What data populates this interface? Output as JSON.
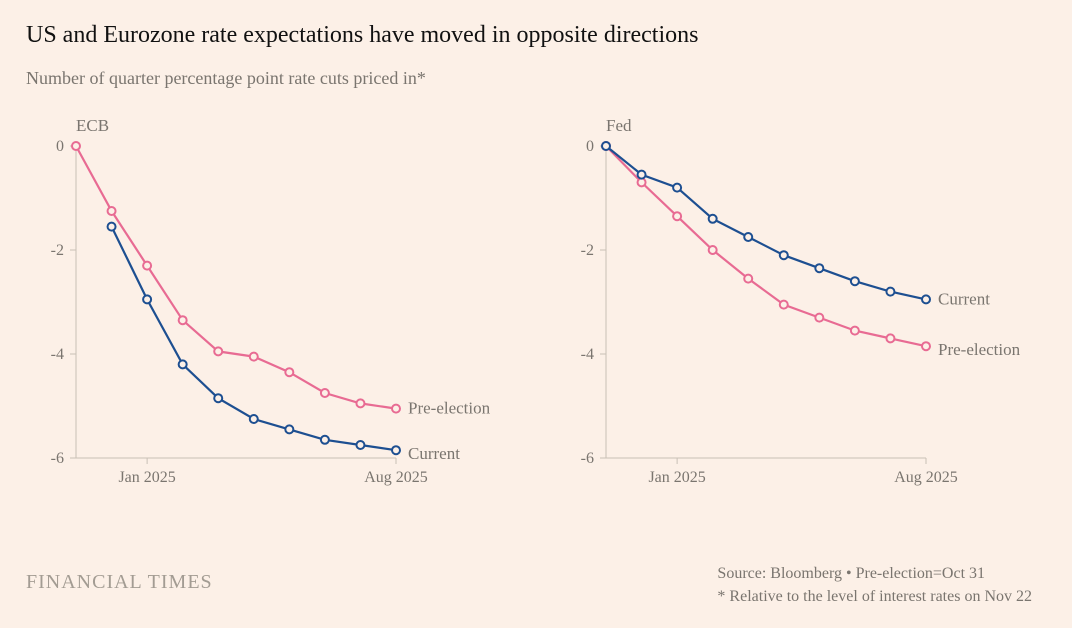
{
  "title": "US and Eurozone rate expectations have moved in opposite directions",
  "subtitle": "Number of quarter percentage point rate cuts priced in*",
  "brand": "FINANCIAL TIMES",
  "source_line": "Source: Bloomberg • Pre-election=Oct 31",
  "footnote_line": "* Relative to the level of interest rates on Nov 22",
  "layout": {
    "bg_color": "#fcf0e7",
    "axis_color": "#c9c0b6",
    "text_muted": "#7a756f",
    "ylim": [
      -6,
      0
    ],
    "ytick_step": 2,
    "x_count": 10,
    "x_ticks": [
      {
        "idx": 2,
        "label": "Jan 2025"
      },
      {
        "idx": 9,
        "label": "Aug 2025"
      }
    ]
  },
  "panels": [
    {
      "key": "ecb",
      "title": "ECB",
      "series": [
        {
          "name": "Pre-election",
          "color": "#e86b93",
          "values": [
            0.0,
            -1.25,
            -2.3,
            -3.35,
            -3.95,
            -4.05,
            -4.35,
            -4.75,
            -4.95,
            -5.05
          ]
        },
        {
          "name": "Current",
          "color": "#1d4f91",
          "values": [
            null,
            -1.55,
            -2.95,
            -4.2,
            -4.85,
            -5.25,
            -5.45,
            -5.65,
            -5.75,
            -5.85
          ]
        }
      ],
      "annotations": [
        {
          "series": 0,
          "text": "Pre-election",
          "at_idx": 9,
          "dy": 0
        },
        {
          "series": 1,
          "text": "Current",
          "at_idx": 9,
          "dy": 4
        }
      ]
    },
    {
      "key": "fed",
      "title": "Fed",
      "series": [
        {
          "name": "Pre-election",
          "color": "#e86b93",
          "values": [
            0.0,
            -0.7,
            -1.35,
            -2.0,
            -2.55,
            -3.05,
            -3.3,
            -3.55,
            -3.7,
            -3.85
          ]
        },
        {
          "name": "Current",
          "color": "#1d4f91",
          "values": [
            0.0,
            -0.55,
            -0.8,
            -1.4,
            -1.75,
            -2.1,
            -2.35,
            -2.6,
            -2.8,
            -2.95
          ]
        }
      ],
      "annotations": [
        {
          "series": 1,
          "text": "Current",
          "at_idx": 9,
          "dy": 0
        },
        {
          "series": 0,
          "text": "Pre-election",
          "at_idx": 9,
          "dy": 4
        }
      ]
    }
  ]
}
